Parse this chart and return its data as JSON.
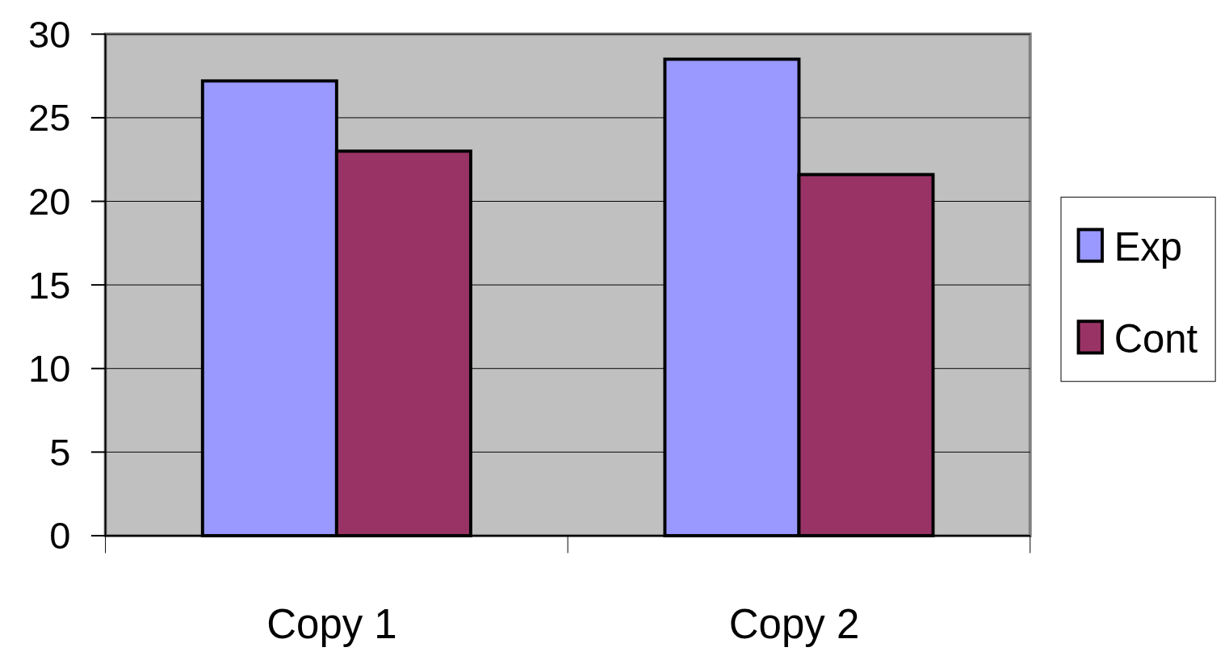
{
  "chart_data": {
    "type": "bar",
    "categories": [
      "Copy 1",
      "Copy 2"
    ],
    "series": [
      {
        "name": "Exp",
        "color": "#9999ff",
        "values": [
          27.2,
          28.5
        ]
      },
      {
        "name": "Cont",
        "color": "#993366",
        "values": [
          23.0,
          21.6
        ]
      }
    ],
    "ylim": [
      0,
      30
    ],
    "yticks": [
      0,
      5,
      10,
      15,
      20,
      25,
      30
    ],
    "grid": "y",
    "legend": "right"
  }
}
